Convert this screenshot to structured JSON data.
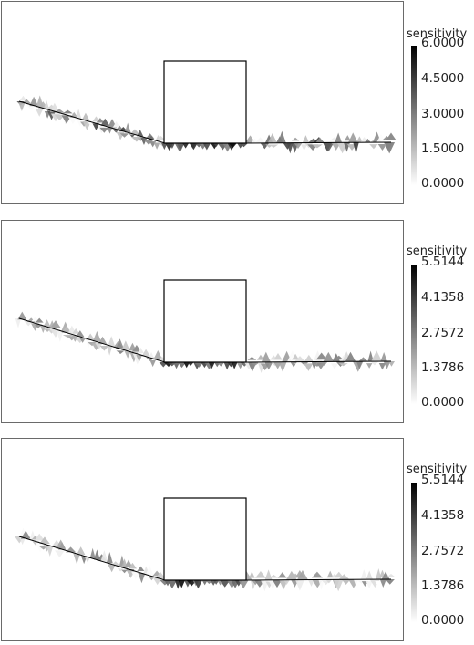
{
  "panels": [
    {
      "legend": {
        "title": "sensitivity",
        "ticks": [
          "6.0000",
          "4.5000",
          "3.0000",
          "1.5000",
          "0.0000"
        ]
      }
    },
    {
      "legend": {
        "title": "sensitivity",
        "ticks": [
          "5.5144",
          "4.1358",
          "2.7572",
          "1.3786",
          "0.0000"
        ]
      }
    },
    {
      "legend": {
        "title": "sensitivity",
        "ticks": [
          "5.5144",
          "4.1358",
          "2.7572",
          "1.3786",
          "0.0000"
        ]
      }
    }
  ],
  "colors": {
    "frame": "#6a6a6a",
    "line": "#000000",
    "colormap_high": "#000000",
    "colormap_low": "#ffffff"
  }
}
